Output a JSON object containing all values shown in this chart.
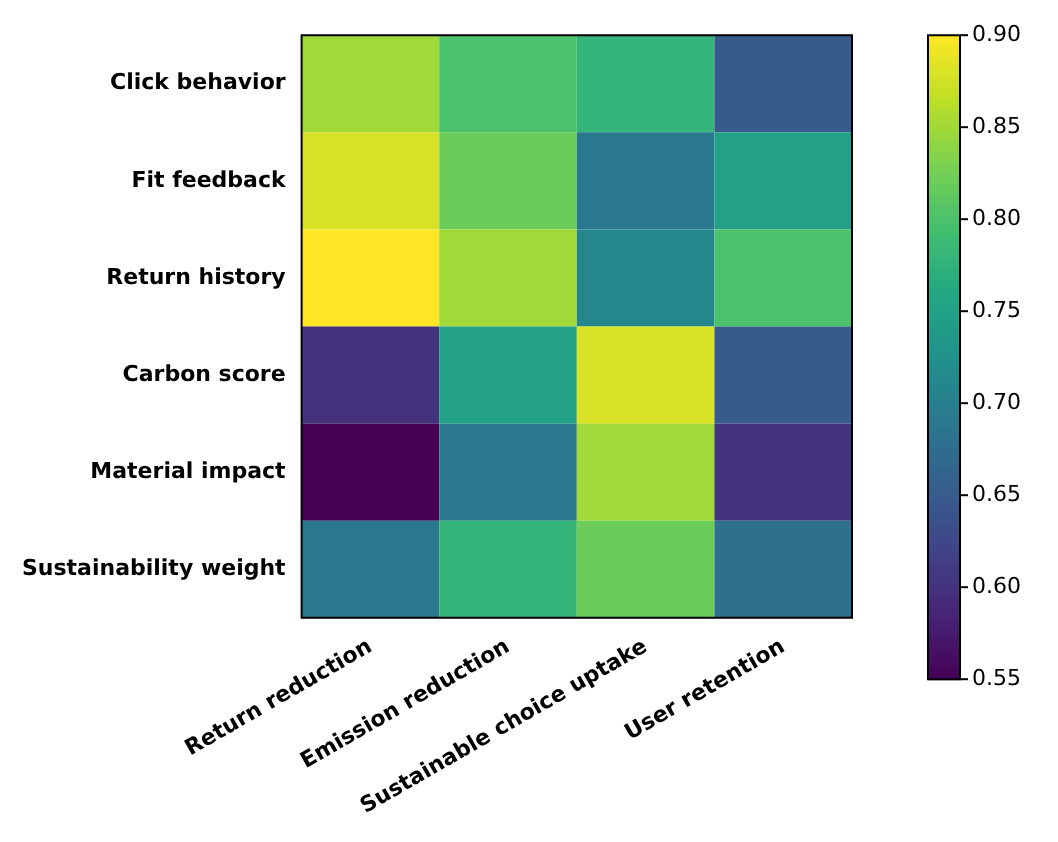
{
  "chart_data": {
    "type": "heatmap",
    "categories": [
      "Return reduction",
      "Emission reduction",
      "Sustainable choice uptake",
      "User retention"
    ],
    "y_categories": [
      "Click behavior",
      "Fit feedback",
      "Return history",
      "Carbon score",
      "Material impact",
      "Sustainability weight"
    ],
    "cells": [
      [
        0.85,
        0.8,
        0.78,
        0.65
      ],
      [
        0.88,
        0.82,
        0.69,
        0.75
      ],
      [
        0.9,
        0.85,
        0.71,
        0.8
      ],
      [
        0.6,
        0.75,
        0.88,
        0.65
      ],
      [
        0.55,
        0.69,
        0.85,
        0.6
      ],
      [
        0.69,
        0.78,
        0.82,
        0.68
      ]
    ],
    "clim": [
      0.55,
      0.9
    ],
    "cticks": [
      0.55,
      {
        "value": 0.6,
        "label": "0.60"
      },
      0.65,
      {
        "value": 0.7,
        "label": "0.70"
      },
      0.75,
      {
        "value": 0.8,
        "label": "0.80"
      },
      0.85,
      {
        "value": 0.9,
        "label": "0.90"
      }
    ]
  }
}
